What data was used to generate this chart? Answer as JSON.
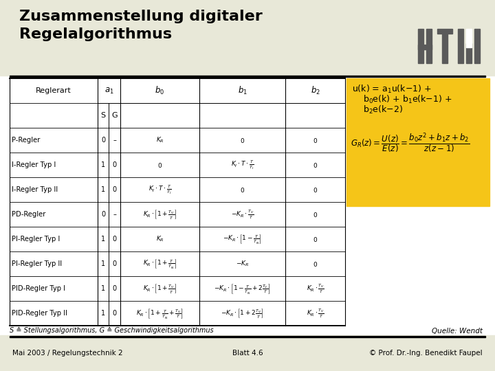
{
  "title_line1": "Zusammenstellung digitaler",
  "title_line2": "Regelalgorithmus",
  "slide_bg": "#e8e8d8",
  "formula_bg": "#f5c518",
  "footer_left": "Mai 2003 / Regelungstechnik 2",
  "footer_center": "Blatt 4.6",
  "footer_right": "© Prof. Dr.-Ing. Benedikt Faupel",
  "source_text": "Quelle: Wendt",
  "footnote": "S ≙ Stellungsalgorithmus, G ≙ Geschwindigkeitsalgorithmus",
  "htw_gray": "#5a5a5a",
  "table_rows": [
    {
      "name": "P-Regler",
      "s": "0",
      "g": "–",
      "b0": "$K_R$",
      "b1": "$0$",
      "b2": "$0$"
    },
    {
      "name": "I-Regler Typ I",
      "s": "1",
      "g": "0",
      "b0": "$0$",
      "b1": "$K_I \\cdot T \\cdot \\frac{T}{T_I}$",
      "b2": "$0$"
    },
    {
      "name": "I-Regler Typ II",
      "s": "1",
      "g": "0",
      "b0": "$K_I \\cdot T \\cdot \\frac{T}{T_I}$",
      "b1": "$0$",
      "b2": "$0$"
    },
    {
      "name": "PD-Regler",
      "s": "0",
      "g": "–",
      "b0": "$K_R \\cdot \\left[1+\\frac{T_V}{T}\\right]$",
      "b1": "$-K_R \\cdot \\frac{T_V}{T}$",
      "b2": "$0$"
    },
    {
      "name": "PI-Regler Typ I",
      "s": "1",
      "g": "0",
      "b0": "$K_R$",
      "b1": "$-K_R \\cdot \\left[1-\\frac{T}{T_N}\\right]$",
      "b2": "$0$"
    },
    {
      "name": "PI-Regler Typ II",
      "s": "1",
      "g": "0",
      "b0": "$K_R \\cdot \\left[1+\\frac{T}{T_N}\\right]$",
      "b1": "$-K_R$",
      "b2": "$0$"
    },
    {
      "name": "PID-Regler Typ I",
      "s": "1",
      "g": "0",
      "b0": "$K_R \\cdot \\left[1+\\frac{T_V}{T}\\right]$",
      "b1": "$-K_R \\cdot \\left[1-\\frac{T}{T_N}+2\\frac{T_V}{T}\\right]$",
      "b2": "$K_R \\cdot \\frac{T_V}{T}$"
    },
    {
      "name": "PID-Regler Typ II",
      "s": "1",
      "g": "0",
      "b0": "$K_R \\cdot \\left[1+\\frac{T}{T_N}+\\frac{T_V}{T}\\right]$",
      "b1": "$-K_R \\cdot \\left[1+2\\frac{T_V}{T}\\right]$",
      "b2": "$K_R \\cdot \\frac{T_V}{T}$"
    }
  ]
}
